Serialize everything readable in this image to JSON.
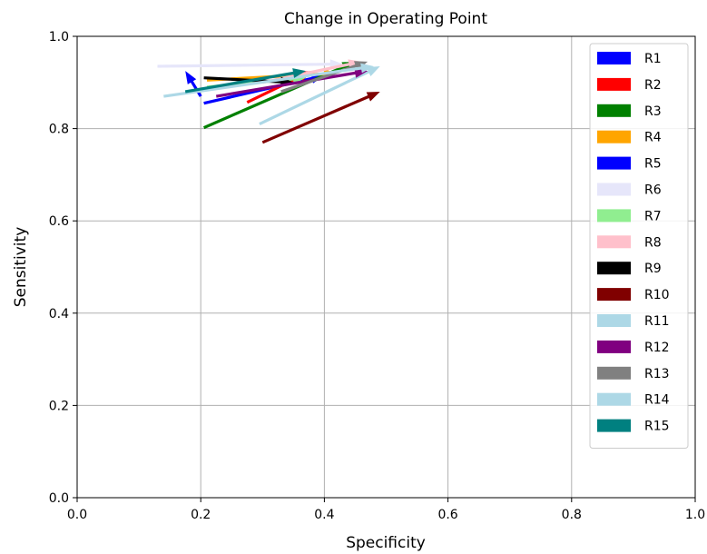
{
  "chart_data": {
    "type": "arrow",
    "title": "Change in Operating Point",
    "xlabel": "Specificity",
    "ylabel": "Sensitivity",
    "xlim": [
      0.0,
      1.0
    ],
    "ylim": [
      0.0,
      1.0
    ],
    "xticks": [
      "0.0",
      "0.2",
      "0.4",
      "0.6",
      "0.8",
      "1.0"
    ],
    "yticks": [
      "0.0",
      "0.2",
      "0.4",
      "0.6",
      "0.8",
      "1.0"
    ],
    "grid": true,
    "legend_position": "upper right",
    "series": [
      {
        "name": "R1",
        "color": "#0000ff",
        "start": [
          0.205,
          0.855
        ],
        "end": [
          0.4,
          0.915
        ]
      },
      {
        "name": "R2",
        "color": "#ff0000",
        "start": [
          0.275,
          0.857
        ],
        "end": [
          0.38,
          0.925
        ]
      },
      {
        "name": "R3",
        "color": "#008000",
        "start": [
          0.205,
          0.802
        ],
        "end": [
          0.45,
          0.945
        ]
      },
      {
        "name": "R4",
        "color": "#ffa500",
        "start": [
          0.21,
          0.905
        ],
        "end": [
          0.42,
          0.92
        ]
      },
      {
        "name": "R5",
        "color": "#0000ff",
        "start": [
          0.2,
          0.87
        ],
        "end": [
          0.175,
          0.925
        ]
      },
      {
        "name": "R6",
        "color": "#e6e6fa",
        "start": [
          0.13,
          0.935
        ],
        "end": [
          0.43,
          0.94
        ]
      },
      {
        "name": "R7",
        "color": "#90ee90",
        "start": [
          0.21,
          0.89
        ],
        "end": [
          0.37,
          0.91
        ]
      },
      {
        "name": "R8",
        "color": "#ffc0cb",
        "start": [
          0.3,
          0.9
        ],
        "end": [
          0.46,
          0.945
        ]
      },
      {
        "name": "R9",
        "color": "#000000",
        "start": [
          0.205,
          0.91
        ],
        "end": [
          0.35,
          0.9
        ]
      },
      {
        "name": "R10",
        "color": "#800000",
        "start": [
          0.3,
          0.77
        ],
        "end": [
          0.49,
          0.88
        ]
      },
      {
        "name": "R11",
        "color": "#add8e6",
        "start": [
          0.295,
          0.81
        ],
        "end": [
          0.49,
          0.935
        ]
      },
      {
        "name": "R12",
        "color": "#800080",
        "start": [
          0.225,
          0.87
        ],
        "end": [
          0.47,
          0.925
        ]
      },
      {
        "name": "R13",
        "color": "#808080",
        "start": [
          0.33,
          0.88
        ],
        "end": [
          0.47,
          0.945
        ]
      },
      {
        "name": "R14",
        "color": "#add8e6",
        "start": [
          0.14,
          0.87
        ],
        "end": [
          0.48,
          0.935
        ]
      },
      {
        "name": "R15",
        "color": "#008080",
        "start": [
          0.175,
          0.88
        ],
        "end": [
          0.37,
          0.925
        ]
      }
    ]
  }
}
